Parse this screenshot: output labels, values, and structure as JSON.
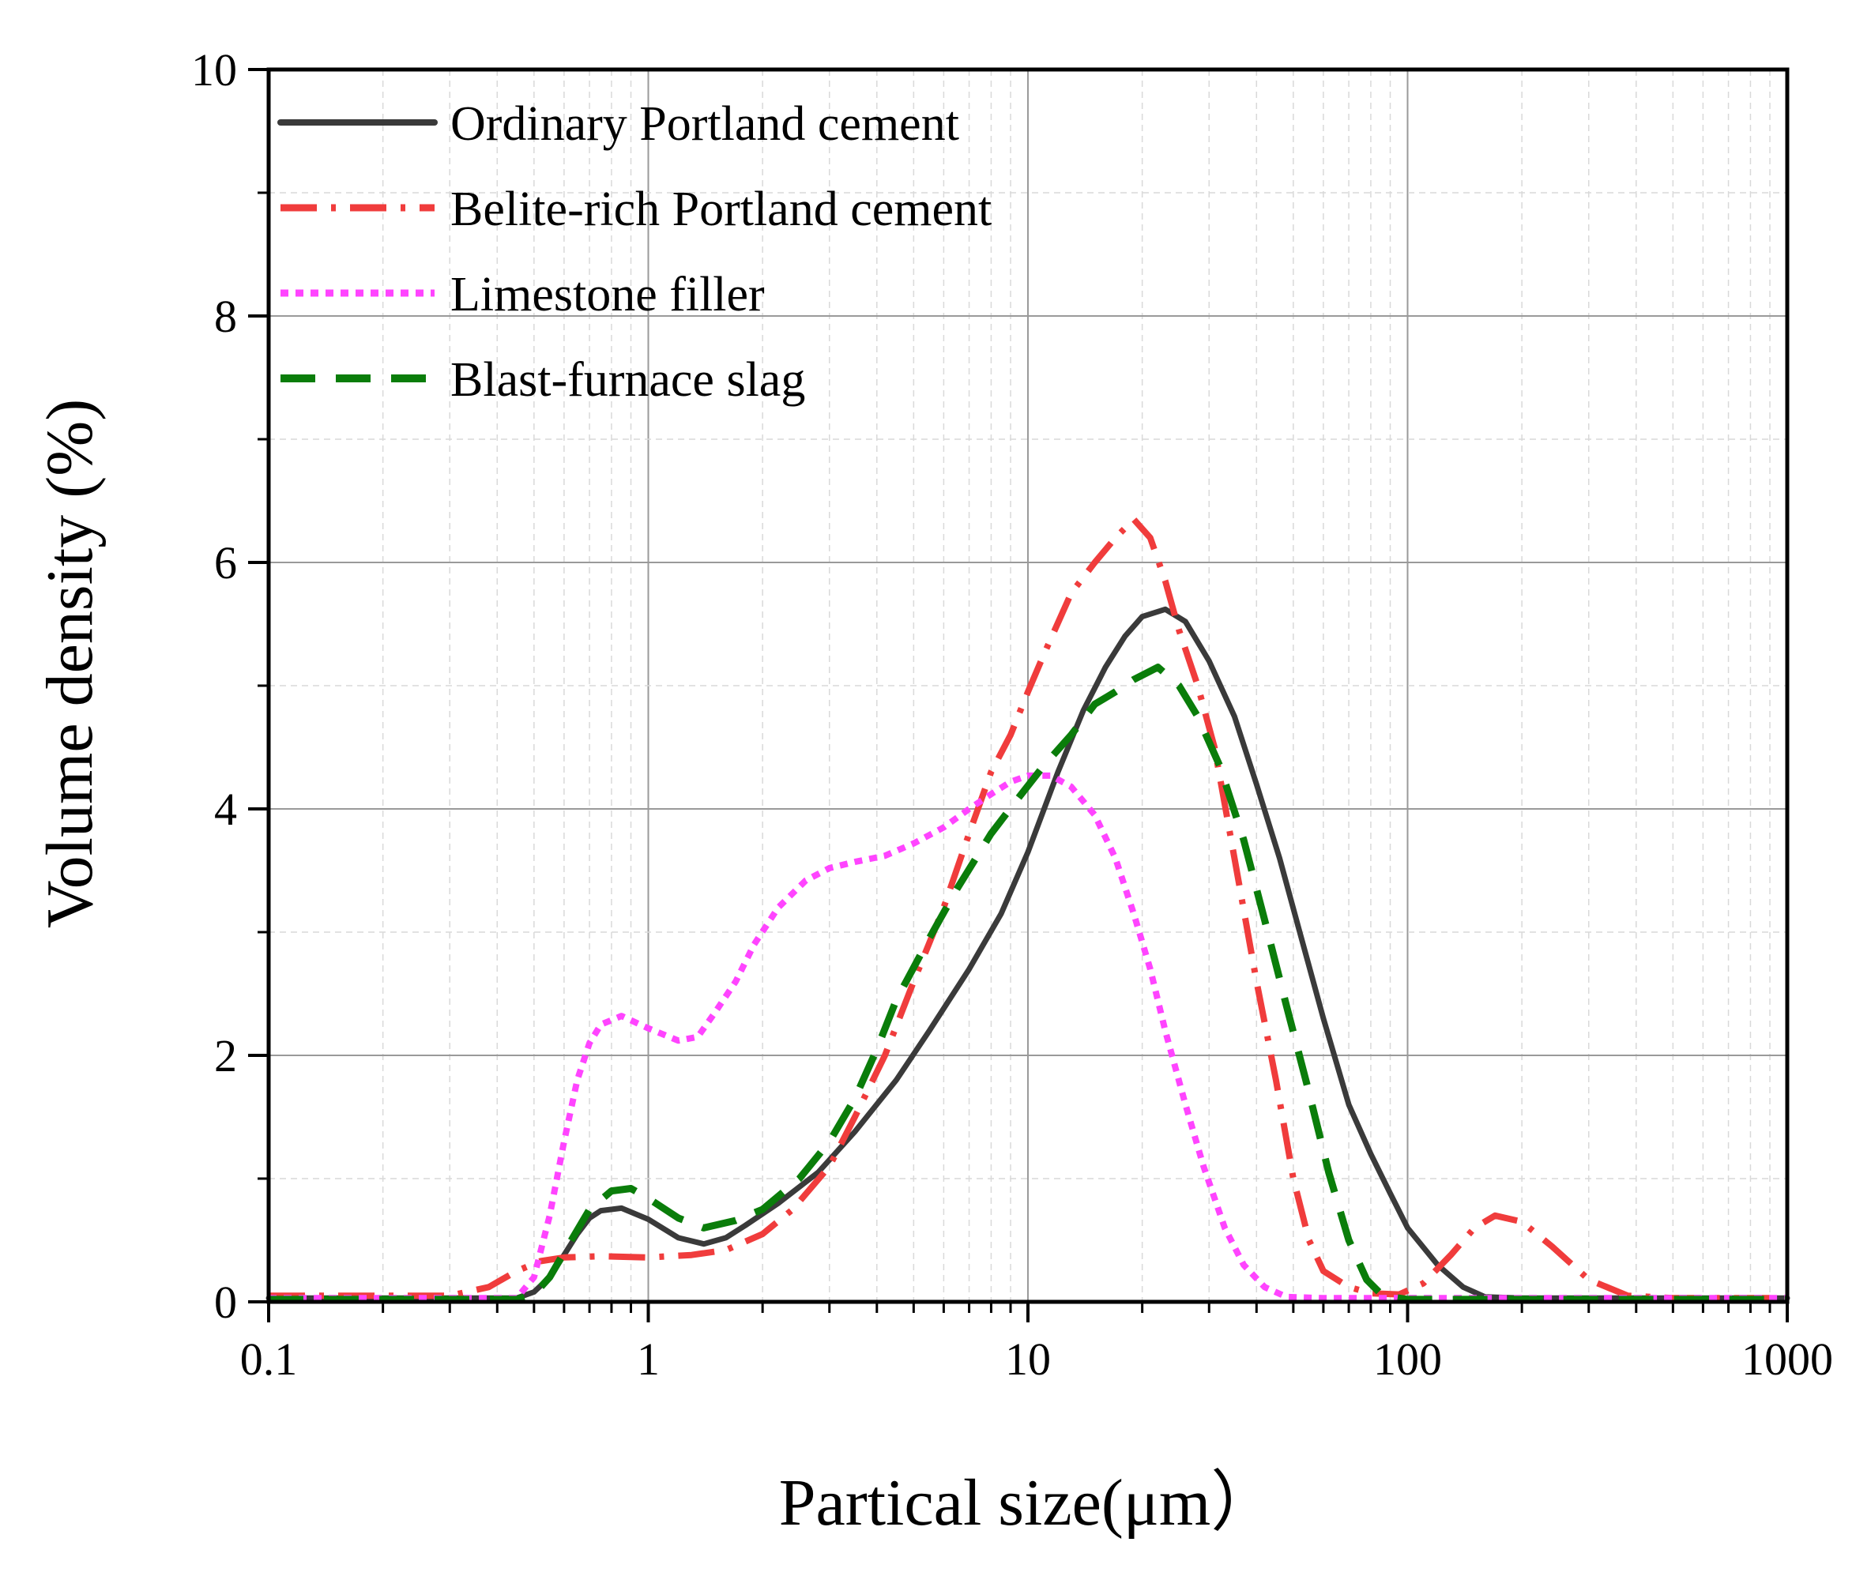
{
  "chart_data": {
    "type": "line",
    "title": "",
    "xlabel": "Partical size(μm）",
    "ylabel": "Volume density (%)",
    "xscale": "log",
    "xlim": [
      0.1,
      1000
    ],
    "ylim": [
      0,
      10
    ],
    "x_ticks": [
      0.1,
      1,
      10,
      100,
      1000
    ],
    "x_tick_labels": [
      "0.1",
      "1",
      "10",
      "100",
      "1000"
    ],
    "y_ticks": [
      0,
      2,
      4,
      6,
      8,
      10
    ],
    "y_tick_labels": [
      "0",
      "2",
      "4",
      "6",
      "8",
      "10"
    ],
    "grid": true,
    "legend_position": "top-left",
    "series": [
      {
        "name": "Ordinary Portland cement",
        "color": "#3a3a3a",
        "style": "solid",
        "points": [
          [
            0.1,
            0.03
          ],
          [
            0.3,
            0.03
          ],
          [
            0.45,
            0.03
          ],
          [
            0.5,
            0.08
          ],
          [
            0.55,
            0.2
          ],
          [
            0.6,
            0.38
          ],
          [
            0.65,
            0.55
          ],
          [
            0.7,
            0.68
          ],
          [
            0.75,
            0.74
          ],
          [
            0.85,
            0.76
          ],
          [
            1.0,
            0.67
          ],
          [
            1.2,
            0.52
          ],
          [
            1.4,
            0.47
          ],
          [
            1.6,
            0.52
          ],
          [
            1.8,
            0.62
          ],
          [
            2.2,
            0.8
          ],
          [
            2.8,
            1.05
          ],
          [
            3.5,
            1.38
          ],
          [
            4.5,
            1.8
          ],
          [
            5.5,
            2.2
          ],
          [
            7.0,
            2.7
          ],
          [
            8.5,
            3.15
          ],
          [
            10.0,
            3.65
          ],
          [
            12.0,
            4.3
          ],
          [
            14.0,
            4.8
          ],
          [
            16.0,
            5.15
          ],
          [
            18.0,
            5.4
          ],
          [
            20.0,
            5.56
          ],
          [
            23.0,
            5.62
          ],
          [
            26.0,
            5.52
          ],
          [
            30.0,
            5.2
          ],
          [
            35.0,
            4.75
          ],
          [
            40.0,
            4.2
          ],
          [
            46.0,
            3.6
          ],
          [
            52.0,
            3.0
          ],
          [
            60.0,
            2.3
          ],
          [
            70.0,
            1.6
          ],
          [
            80.0,
            1.2
          ],
          [
            90.0,
            0.88
          ],
          [
            100.0,
            0.6
          ],
          [
            120.0,
            0.3
          ],
          [
            140.0,
            0.12
          ],
          [
            160.0,
            0.04
          ],
          [
            200.0,
            0.03
          ],
          [
            1000.0,
            0.03
          ]
        ]
      },
      {
        "name": "Belite-rich Portland cement",
        "color": "#f03c3c",
        "style": "dash-dot",
        "points": [
          [
            0.1,
            0.05
          ],
          [
            0.3,
            0.05
          ],
          [
            0.38,
            0.12
          ],
          [
            0.45,
            0.25
          ],
          [
            0.52,
            0.33
          ],
          [
            0.6,
            0.36
          ],
          [
            0.75,
            0.37
          ],
          [
            1.0,
            0.36
          ],
          [
            1.3,
            0.38
          ],
          [
            1.6,
            0.42
          ],
          [
            2.0,
            0.55
          ],
          [
            2.4,
            0.75
          ],
          [
            3.0,
            1.1
          ],
          [
            3.5,
            1.5
          ],
          [
            4.2,
            2.0
          ],
          [
            5.0,
            2.6
          ],
          [
            6.0,
            3.2
          ],
          [
            7.0,
            3.8
          ],
          [
            8.0,
            4.3
          ],
          [
            9.0,
            4.6
          ],
          [
            10.0,
            4.95
          ],
          [
            11.0,
            5.25
          ],
          [
            13.0,
            5.75
          ],
          [
            15.0,
            6.0
          ],
          [
            17.0,
            6.2
          ],
          [
            19.0,
            6.35
          ],
          [
            21.0,
            6.2
          ],
          [
            23.0,
            5.85
          ],
          [
            25.0,
            5.45
          ],
          [
            28.0,
            5.0
          ],
          [
            31.0,
            4.5
          ],
          [
            35.0,
            3.6
          ],
          [
            40.0,
            2.6
          ],
          [
            45.0,
            1.8
          ],
          [
            50.0,
            1.0
          ],
          [
            55.0,
            0.5
          ],
          [
            60.0,
            0.25
          ],
          [
            70.0,
            0.12
          ],
          [
            80.0,
            0.07
          ],
          [
            95.0,
            0.06
          ],
          [
            110.0,
            0.15
          ],
          [
            130.0,
            0.38
          ],
          [
            150.0,
            0.6
          ],
          [
            170.0,
            0.7
          ],
          [
            200.0,
            0.65
          ],
          [
            240.0,
            0.45
          ],
          [
            300.0,
            0.18
          ],
          [
            380.0,
            0.05
          ],
          [
            500.0,
            0.03
          ],
          [
            1000.0,
            0.03
          ]
        ]
      },
      {
        "name": "Limestone filler",
        "color": "#ff44ff",
        "style": "dotted",
        "points": [
          [
            0.1,
            0.03
          ],
          [
            0.45,
            0.03
          ],
          [
            0.5,
            0.2
          ],
          [
            0.55,
            0.7
          ],
          [
            0.6,
            1.3
          ],
          [
            0.65,
            1.8
          ],
          [
            0.7,
            2.1
          ],
          [
            0.75,
            2.25
          ],
          [
            0.85,
            2.32
          ],
          [
            1.0,
            2.22
          ],
          [
            1.2,
            2.12
          ],
          [
            1.35,
            2.15
          ],
          [
            1.5,
            2.35
          ],
          [
            1.7,
            2.6
          ],
          [
            1.9,
            2.9
          ],
          [
            2.2,
            3.2
          ],
          [
            2.6,
            3.42
          ],
          [
            3.0,
            3.52
          ],
          [
            3.5,
            3.57
          ],
          [
            4.2,
            3.62
          ],
          [
            5.0,
            3.72
          ],
          [
            6.0,
            3.85
          ],
          [
            7.0,
            4.0
          ],
          [
            8.0,
            4.12
          ],
          [
            9.0,
            4.22
          ],
          [
            10.0,
            4.27
          ],
          [
            11.5,
            4.27
          ],
          [
            13.0,
            4.18
          ],
          [
            15.0,
            3.95
          ],
          [
            17.0,
            3.6
          ],
          [
            19.0,
            3.15
          ],
          [
            21.0,
            2.7
          ],
          [
            23.0,
            2.2
          ],
          [
            26.0,
            1.6
          ],
          [
            29.0,
            1.1
          ],
          [
            33.0,
            0.6
          ],
          [
            37.0,
            0.3
          ],
          [
            42.0,
            0.12
          ],
          [
            48.0,
            0.04
          ],
          [
            60.0,
            0.03
          ],
          [
            1000.0,
            0.03
          ]
        ]
      },
      {
        "name": "Blast-furnace slag",
        "color": "#0a7d0a",
        "style": "dashed",
        "points": [
          [
            0.1,
            0.02
          ],
          [
            0.45,
            0.02
          ],
          [
            0.5,
            0.06
          ],
          [
            0.55,
            0.2
          ],
          [
            0.6,
            0.4
          ],
          [
            0.7,
            0.75
          ],
          [
            0.8,
            0.9
          ],
          [
            0.9,
            0.92
          ],
          [
            1.0,
            0.84
          ],
          [
            1.2,
            0.68
          ],
          [
            1.4,
            0.6
          ],
          [
            1.7,
            0.66
          ],
          [
            2.0,
            0.75
          ],
          [
            2.5,
            1.0
          ],
          [
            3.0,
            1.3
          ],
          [
            3.5,
            1.65
          ],
          [
            4.0,
            2.05
          ],
          [
            4.5,
            2.45
          ],
          [
            5.5,
            2.95
          ],
          [
            6.5,
            3.35
          ],
          [
            8.0,
            3.8
          ],
          [
            9.5,
            4.1
          ],
          [
            11.0,
            4.35
          ],
          [
            13.0,
            4.6
          ],
          [
            15.0,
            4.85
          ],
          [
            17.0,
            4.95
          ],
          [
            19.0,
            5.05
          ],
          [
            22.0,
            5.15
          ],
          [
            25.0,
            5.0
          ],
          [
            28.0,
            4.75
          ],
          [
            32.0,
            4.35
          ],
          [
            37.0,
            3.75
          ],
          [
            42.0,
            3.1
          ],
          [
            48.0,
            2.4
          ],
          [
            55.0,
            1.7
          ],
          [
            62.0,
            1.05
          ],
          [
            70.0,
            0.5
          ],
          [
            78.0,
            0.18
          ],
          [
            86.0,
            0.05
          ],
          [
            100.0,
            0.02
          ],
          [
            1000.0,
            0.02
          ]
        ]
      }
    ]
  }
}
